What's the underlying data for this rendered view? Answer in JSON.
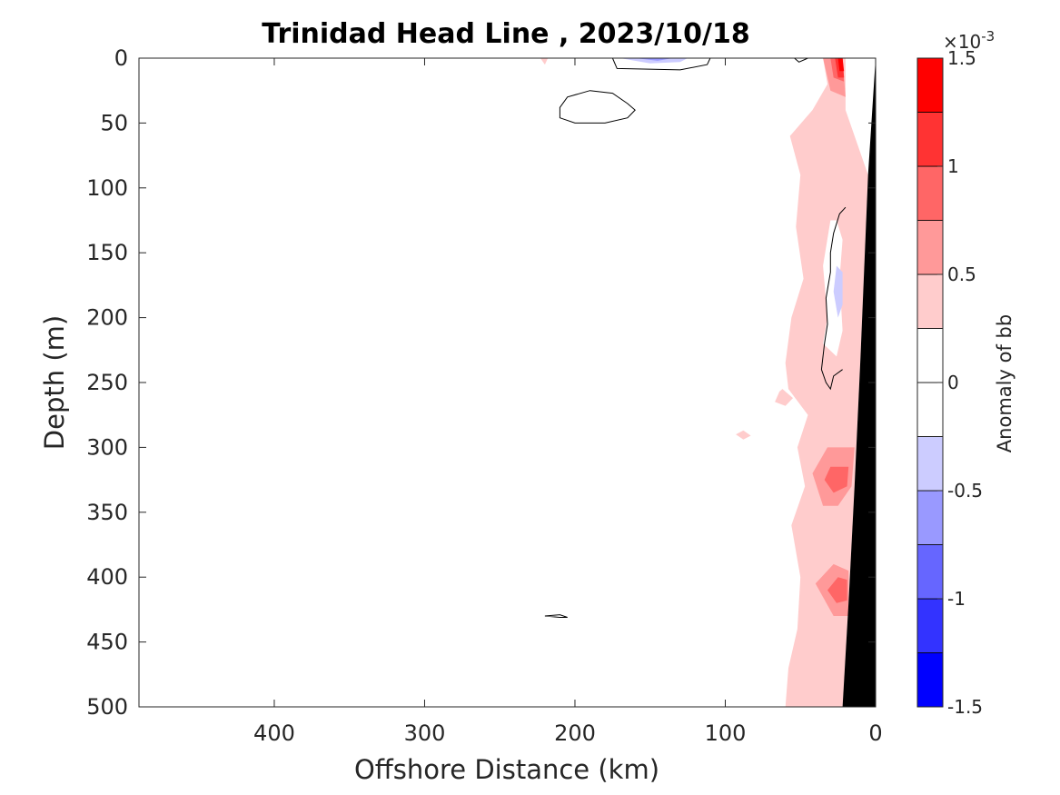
{
  "chart_data": {
    "type": "contourf",
    "title": "Trinidad Head Line , 2023/10/18",
    "xlabel": "Offshore Distance (km)",
    "ylabel": "Depth (m)",
    "x_reversed": true,
    "xlim": [
      490,
      0
    ],
    "ylim": [
      0,
      500
    ],
    "y_reversed": true,
    "xticks": [
      400,
      300,
      200,
      100,
      0
    ],
    "xtick_labels": [
      "400",
      "300",
      "200",
      "100",
      "0"
    ],
    "yticks": [
      0,
      50,
      100,
      150,
      200,
      250,
      300,
      350,
      400,
      450,
      500
    ],
    "ytick_labels": [
      "0",
      "50",
      "100",
      "150",
      "200",
      "250",
      "300",
      "350",
      "400",
      "450",
      "500"
    ],
    "colorbar": {
      "label": "Anomaly of bb",
      "exponent_label": "×10",
      "exponent_power": "-3",
      "range": [
        -1.5,
        1.5
      ],
      "levels": [
        -1.5,
        -1.25,
        -1.0,
        -0.75,
        -0.5,
        -0.25,
        0,
        0.25,
        0.5,
        0.75,
        1.0,
        1.25,
        1.5
      ],
      "colors": [
        "#0000ff",
        "#3333ff",
        "#6666ff",
        "#9999ff",
        "#ccccff",
        "#ffffff",
        "#ffffff",
        "#ffcccc",
        "#ff9999",
        "#ff6666",
        "#ff3333",
        "#ff0000"
      ],
      "ticks": [
        1.5,
        1,
        0.5,
        0,
        -0.5,
        -1,
        -1.5
      ],
      "tick_labels": [
        "1.5",
        "1",
        "0.5",
        "0",
        "-0.5",
        "-1",
        "-1.5"
      ]
    },
    "bathymetry_color": "#000000",
    "bathymetry": [
      [
        0,
        0
      ],
      [
        5,
        90
      ],
      [
        10,
        230
      ],
      [
        14,
        330
      ],
      [
        18,
        420
      ],
      [
        22,
        500
      ],
      [
        0,
        500
      ]
    ],
    "regions": [
      {
        "level": 0.25,
        "points": [
          [
            57,
            60
          ],
          [
            50,
            90
          ],
          [
            53,
            130
          ],
          [
            48,
            170
          ],
          [
            56,
            200
          ],
          [
            60,
            235
          ],
          [
            58,
            255
          ],
          [
            45,
            275
          ],
          [
            52,
            300
          ],
          [
            47,
            330
          ],
          [
            56,
            360
          ],
          [
            50,
            400
          ],
          [
            52,
            440
          ],
          [
            58,
            470
          ],
          [
            60,
            500
          ],
          [
            22,
            500
          ],
          [
            18,
            420
          ],
          [
            14,
            330
          ],
          [
            10,
            230
          ],
          [
            5,
            90
          ],
          [
            20,
            40
          ],
          [
            20,
            0
          ],
          [
            35,
            0
          ],
          [
            32,
            20
          ],
          [
            42,
            40
          ]
        ]
      },
      {
        "level": 0.25,
        "points": [
          [
            62,
            255
          ],
          [
            55,
            262
          ],
          [
            60,
            268
          ],
          [
            67,
            265
          ],
          [
            64,
            257
          ]
        ]
      },
      {
        "level": 0.25,
        "points": [
          [
            93,
            290
          ],
          [
            88,
            287
          ],
          [
            83,
            291
          ],
          [
            88,
            294
          ]
        ]
      },
      {
        "level": 0.25,
        "points": [
          [
            223,
            0
          ],
          [
            220,
            5
          ],
          [
            218,
            0
          ]
        ]
      },
      {
        "level": 0.5,
        "points": [
          [
            32,
            300
          ],
          [
            42,
            320
          ],
          [
            35,
            345
          ],
          [
            25,
            345
          ],
          [
            16,
            330
          ],
          [
            14,
            300
          ],
          [
            20,
            300
          ]
        ]
      },
      {
        "level": 0.5,
        "points": [
          [
            28,
            390
          ],
          [
            40,
            405
          ],
          [
            28,
            430
          ],
          [
            18,
            430
          ],
          [
            18,
            395
          ]
        ]
      },
      {
        "level": 0.5,
        "points": [
          [
            22,
            0
          ],
          [
            35,
            0
          ],
          [
            30,
            25
          ],
          [
            20,
            30
          ]
        ]
      },
      {
        "level": 0.75,
        "points": [
          [
            30,
            315
          ],
          [
            34,
            325
          ],
          [
            28,
            335
          ],
          [
            19,
            330
          ],
          [
            18,
            315
          ]
        ]
      },
      {
        "level": 0.75,
        "points": [
          [
            25,
            400
          ],
          [
            32,
            410
          ],
          [
            26,
            420
          ],
          [
            19,
            418
          ],
          [
            19,
            402
          ]
        ]
      },
      {
        "level": 0.75,
        "points": [
          [
            22,
            0
          ],
          [
            30,
            0
          ],
          [
            28,
            15
          ],
          [
            21,
            18
          ]
        ]
      },
      {
        "level": 1.0,
        "points": [
          [
            22,
            0
          ],
          [
            27,
            0
          ],
          [
            25,
            15
          ],
          [
            21,
            15
          ]
        ]
      },
      {
        "level": 1.25,
        "points": [
          [
            22,
            0
          ],
          [
            25,
            0
          ],
          [
            24,
            10
          ],
          [
            21,
            10
          ]
        ]
      },
      {
        "level": -0.25,
        "points": [
          [
            30,
            125
          ],
          [
            35,
            160
          ],
          [
            32,
            200
          ],
          [
            35,
            220
          ],
          [
            26,
            230
          ],
          [
            22,
            210
          ],
          [
            24,
            170
          ],
          [
            22,
            140
          ],
          [
            26,
            125
          ]
        ]
      },
      {
        "level": -0.5,
        "points": [
          [
            26,
            160
          ],
          [
            28,
            180
          ],
          [
            25,
            200
          ],
          [
            22,
            190
          ],
          [
            22,
            165
          ]
        ]
      },
      {
        "level": -0.25,
        "points": [
          [
            180,
            0
          ],
          [
            165,
            6
          ],
          [
            130,
            8
          ],
          [
            110,
            4
          ],
          [
            120,
            0
          ]
        ]
      },
      {
        "level": -0.5,
        "points": [
          [
            170,
            0
          ],
          [
            150,
            4
          ],
          [
            130,
            3
          ],
          [
            125,
            0
          ]
        ]
      },
      {
        "level": -0.75,
        "points": [
          [
            160,
            0
          ],
          [
            145,
            2
          ],
          [
            135,
            0
          ]
        ]
      }
    ],
    "contour_lines": [
      {
        "level": 0,
        "closed": true,
        "points": [
          [
            210,
            38
          ],
          [
            205,
            30
          ],
          [
            190,
            25
          ],
          [
            175,
            27
          ],
          [
            165,
            35
          ],
          [
            160,
            40
          ],
          [
            165,
            46
          ],
          [
            180,
            50
          ],
          [
            200,
            50
          ],
          [
            210,
            46
          ]
        ]
      },
      {
        "level": 0,
        "closed": true,
        "points": [
          [
            220,
            430
          ],
          [
            210,
            429
          ],
          [
            205,
            431
          ],
          [
            210,
            431
          ]
        ]
      },
      {
        "level": 0,
        "closed": false,
        "points": [
          [
            175,
            0
          ],
          [
            172,
            8
          ],
          [
            130,
            9
          ],
          [
            112,
            5
          ],
          [
            110,
            0
          ]
        ]
      },
      {
        "level": 0,
        "closed": false,
        "points": [
          [
            54,
            0
          ],
          [
            51,
            3
          ],
          [
            45,
            0
          ]
        ]
      },
      {
        "level": 0,
        "closed": false,
        "points": [
          [
            20,
            115
          ],
          [
            24,
            120
          ],
          [
            28,
            135
          ],
          [
            30,
            150
          ],
          [
            30,
            165
          ],
          [
            33,
            185
          ],
          [
            32,
            205
          ],
          [
            34,
            220
          ],
          [
            36,
            240
          ],
          [
            33,
            250
          ],
          [
            30,
            255
          ],
          [
            28,
            245
          ],
          [
            22,
            240
          ]
        ]
      }
    ]
  }
}
